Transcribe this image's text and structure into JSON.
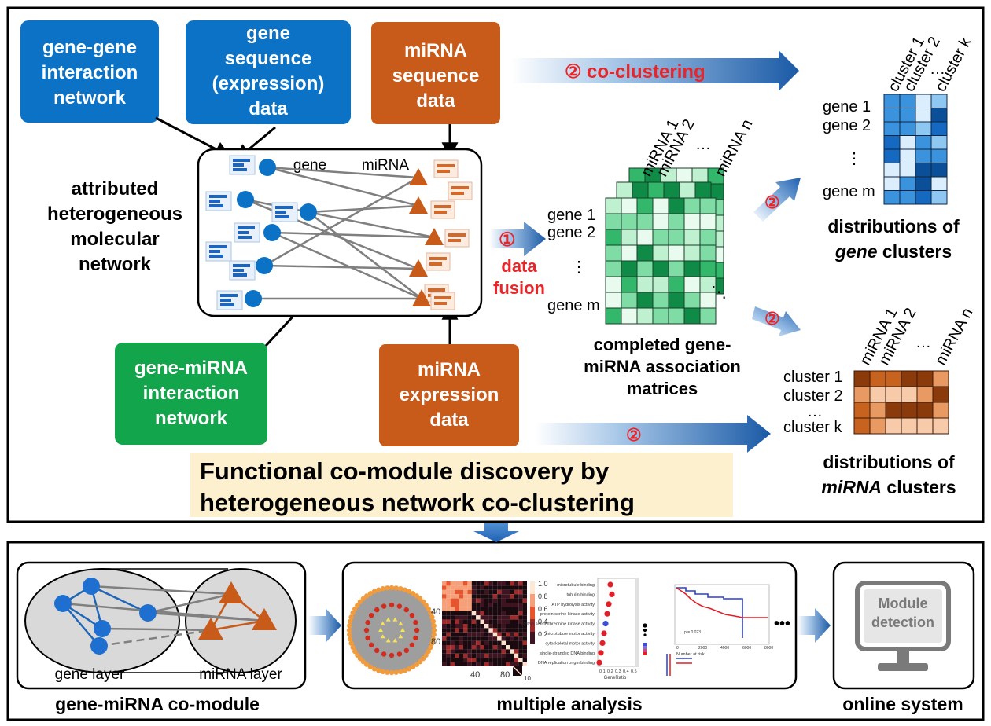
{
  "boxes": {
    "gene_gene": [
      "gene-gene",
      "interaction",
      "network"
    ],
    "gene_seq": [
      "gene",
      "sequence",
      "(expression)",
      "data"
    ],
    "mirna_seq": [
      "miRNA",
      "sequence",
      "data"
    ],
    "gene_mirna": [
      "gene-miRNA",
      "interaction",
      "network"
    ],
    "mirna_expr": [
      "miRNA",
      "expression",
      "data"
    ]
  },
  "network": {
    "title": [
      "attributed",
      "heterogeneous",
      "molecular",
      "network"
    ],
    "gene_label": "gene",
    "mirna_label": "miRNA"
  },
  "steps": {
    "one": "①",
    "two": "②",
    "co_clustering": "co-clustering",
    "data_fusion": [
      "data",
      "fusion"
    ]
  },
  "fusion_matrix": {
    "rows": [
      "gene 1",
      "gene 2",
      "⋮",
      "gene m"
    ],
    "cols": [
      "miRNA 1",
      "miRNA 2",
      "…",
      "miRNA n"
    ],
    "dots": "⋱",
    "caption": [
      "completed gene-",
      "miRNA association",
      "matrices"
    ]
  },
  "gene_clusters": {
    "rows": [
      "gene 1",
      "gene 2",
      "⋮",
      "gene m"
    ],
    "cols": [
      "cluster 1",
      "cluster 2",
      "…",
      "cluster k"
    ],
    "caption1": "distributions of",
    "caption2_em": "gene",
    "caption2_rest": " clusters"
  },
  "mirna_clusters": {
    "rows": [
      "cluster 1",
      "cluster 2",
      "…",
      "cluster k"
    ],
    "cols": [
      "miRNA 1",
      "miRNA 2",
      "…",
      "miRNA n"
    ],
    "caption1": "distributions of",
    "caption2_em": "miRNA",
    "caption2_rest": " clusters"
  },
  "banner": [
    "Functional  co-module discovery by",
    "heterogeneous network co-clustering"
  ],
  "bottom": {
    "comodule": {
      "gene_layer": "gene layer",
      "mirna_layer": "miRNA layer",
      "caption": "gene-miRNA co-module"
    },
    "analysis": {
      "caption": "multiple analysis",
      "heat_ticks_left": [
        "40",
        "80"
      ],
      "heat_ticks_bottom": [
        "40",
        "80"
      ],
      "legend_ticks": [
        "1.0",
        "0.8",
        "0.6",
        "0.4",
        "0.2"
      ],
      "small_ticks": [
        "10"
      ],
      "go_terms": [
        "microtubule binding",
        "tubulin binding",
        "ATP hydrolysis activity",
        "protein serine kinase activity",
        "protein serine/threonine kinase activity",
        "microtubule motor activity",
        "cytoskeletal motor activity",
        "single-stranded DNA binding",
        "DNA replication origin binding"
      ],
      "go_axis": [
        "0.1",
        "0.2",
        "0.3",
        "0.4",
        "0.5"
      ],
      "go_axis_title": "GeneRatio",
      "km_p": "p = 0.023",
      "km_risk_title": "Number at risk",
      "km_axis": [
        "0",
        "2000",
        "4000",
        "6000",
        "8000"
      ],
      "more": "•••"
    },
    "online": {
      "screen_text": [
        "Module",
        "detection"
      ],
      "caption": "online system"
    }
  },
  "colors": {
    "blue_box": "#0b72c5",
    "orange_box": "#c85a1a",
    "green_box": "#13a54b",
    "banner_bg": "#fdf0cf",
    "red_text": "#e8262a"
  }
}
